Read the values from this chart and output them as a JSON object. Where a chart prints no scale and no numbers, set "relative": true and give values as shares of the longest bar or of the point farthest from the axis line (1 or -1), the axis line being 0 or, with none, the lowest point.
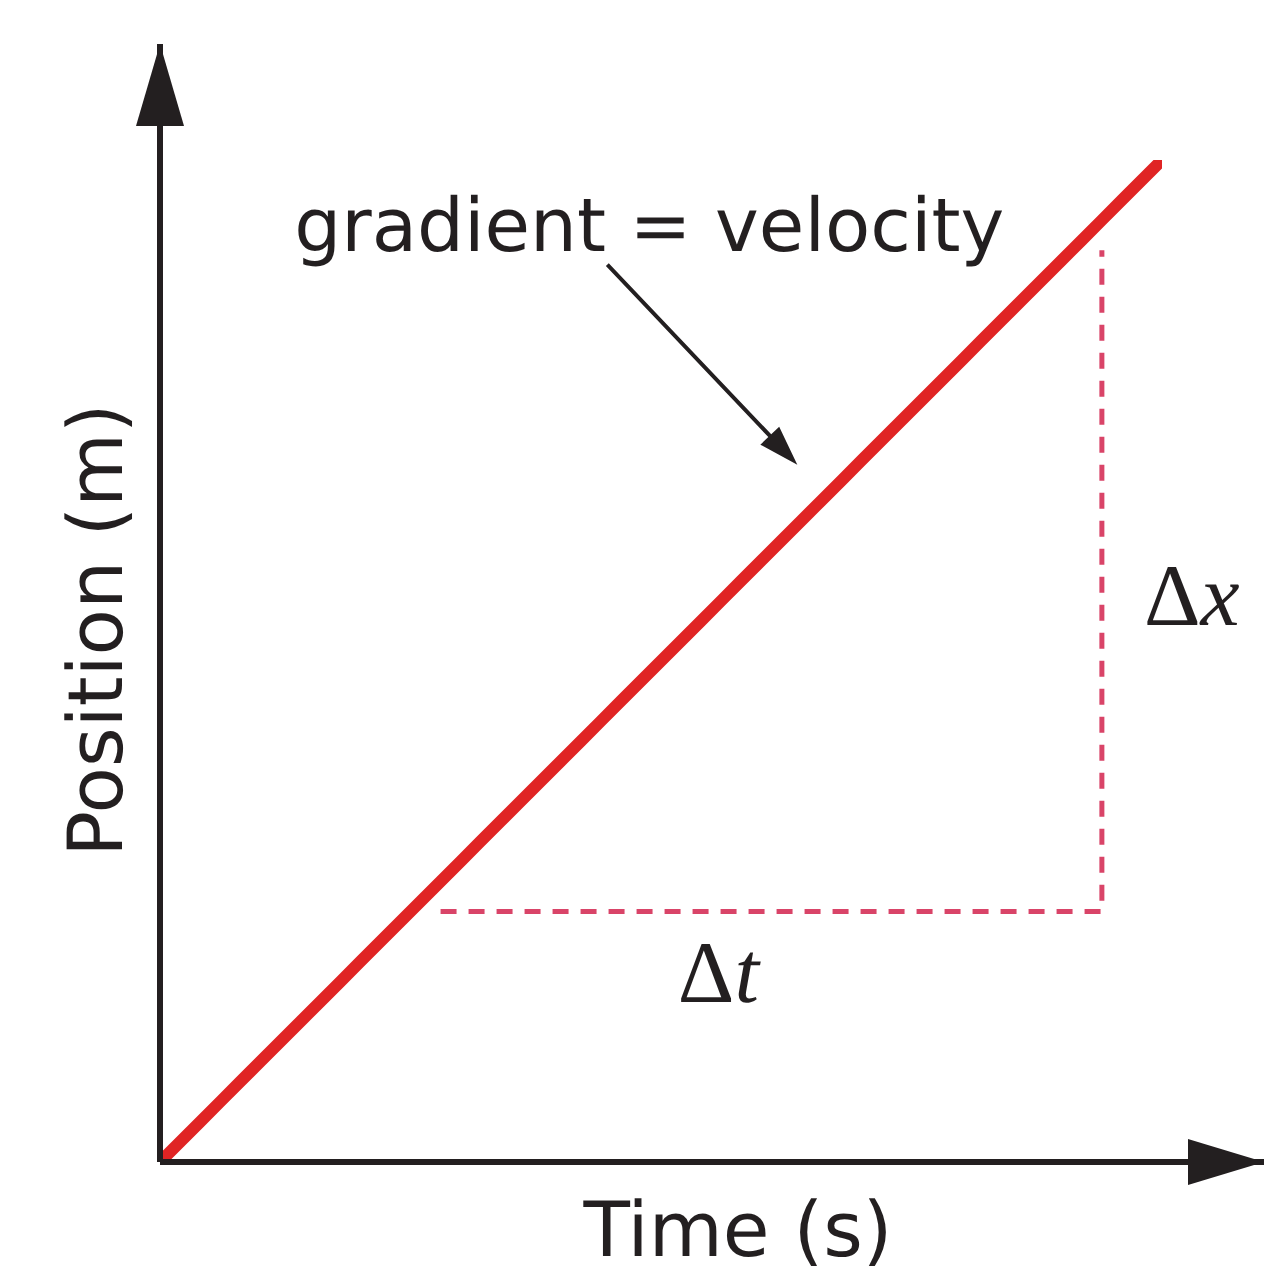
{
  "chart_data": {
    "type": "line",
    "xlabel": "Time (s)",
    "ylabel": "Position (m)",
    "relative": true,
    "marker": "none",
    "categories": [
      null,
      null,
      null,
      null,
      null,
      null,
      null,
      null,
      null,
      null,
      null,
      null,
      null,
      null,
      null,
      null,
      null,
      null,
      null,
      null,
      null,
      null,
      null,
      null,
      null,
      null,
      null,
      null,
      null,
      null,
      null,
      null,
      null,
      null,
      null,
      null,
      null,
      null,
      null,
      null,
      null,
      null,
      null,
      null,
      null,
      null,
      null,
      null,
      null,
      null,
      null
    ],
    "annotations": [
      "gradient = velocity",
      "Δt",
      "Δx"
    ],
    "series": [
      {
        "color": "#e02424",
        "values": [
          0,
          0.02,
          0.04,
          0.06,
          0.08,
          0.1,
          0.12,
          0.14,
          0.16,
          0.18,
          0.2,
          0.22,
          0.24,
          0.26,
          0.28,
          0.3,
          0.32,
          0.34,
          0.36,
          0.38,
          0.4,
          0.42,
          0.44,
          0.46,
          0.48,
          0.5,
          0.52,
          0.54,
          0.56,
          0.58,
          0.6,
          0.62,
          0.64,
          0.66,
          0.68,
          0.7,
          0.72,
          0.74,
          0.76,
          0.78,
          0.8,
          0.82,
          0.84,
          0.86,
          0.88,
          0.9,
          0.92,
          0.94,
          0.96,
          0.98,
          1
        ]
      },
      {
        "type": "step",
        "color": "#d94468",
        "line_style": "dashed",
        "values": [
          null,
          null,
          null,
          null,
          null,
          null,
          null,
          null,
          null,
          null,
          null,
          null,
          null,
          null,
          0.25,
          0.25,
          0.25,
          0.25,
          0.25,
          0.25,
          0.25,
          0.25,
          0.25,
          0.25,
          0.25,
          0.25,
          0.25,
          0.25,
          0.25,
          0.25,
          0.25,
          0.25,
          0.25,
          0.25,
          0.25,
          0.25,
          0.25,
          0.25,
          0.25,
          0.25,
          0.25,
          0.25,
          0.25,
          0.25,
          0.25,
          0.25,
          0.25,
          0.91,
          null,
          null,
          null
        ]
      }
    ]
  }
}
